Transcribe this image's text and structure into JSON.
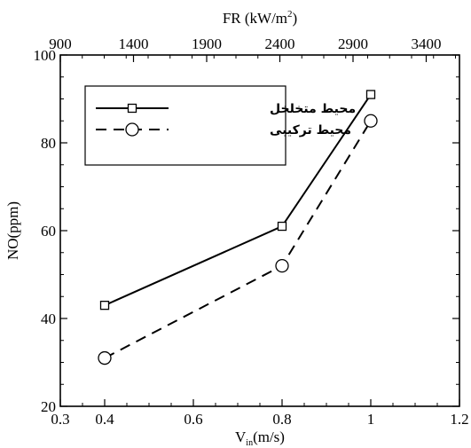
{
  "chart_data": {
    "type": "line",
    "xlabel_main": "V",
    "xlabel_sub": "in",
    "xlabel_unit": "(m/s)",
    "ylabel": "NO(ppm)",
    "top_xlabel_main": "FR (kW/m",
    "top_xlabel_sup": "2",
    "top_xlabel_end": ")",
    "xlim": [
      0.3,
      1.2
    ],
    "ylim": [
      20,
      100
    ],
    "x_ticks": [
      {
        "value": 0.3,
        "label": "0.3"
      },
      {
        "value": 0.4,
        "label": "0.4"
      },
      {
        "value": 0.6,
        "label": "0.6"
      },
      {
        "value": 0.8,
        "label": "0.8"
      },
      {
        "value": 1.0,
        "label": "1"
      },
      {
        "value": 1.2,
        "label": "1.2"
      }
    ],
    "y_ticks": [
      {
        "value": 20,
        "label": "20"
      },
      {
        "value": 40,
        "label": "40"
      },
      {
        "value": 60,
        "label": "60"
      },
      {
        "value": 80,
        "label": "80"
      },
      {
        "value": 100,
        "label": "100"
      }
    ],
    "top_ticks": [
      {
        "value": 0.3,
        "label": "900"
      },
      {
        "value": 0.465,
        "label": "1400"
      },
      {
        "value": 0.63,
        "label": "1900"
      },
      {
        "value": 0.795,
        "label": "2400"
      },
      {
        "value": 0.96,
        "label": "2900"
      },
      {
        "value": 1.125,
        "label": "3400"
      }
    ],
    "grid": false,
    "legend_position": "top-left",
    "series": [
      {
        "name": "محیط متخلخل",
        "style": "solid",
        "marker": "square",
        "color": "#000000",
        "x": [
          0.4,
          0.8,
          1.0
        ],
        "y": [
          43,
          61,
          91
        ]
      },
      {
        "name": "محیط ترکیبی",
        "style": "dashed",
        "marker": "circle",
        "color": "#000000",
        "x": [
          0.4,
          0.8,
          1.0
        ],
        "y": [
          31,
          52,
          85
        ]
      }
    ]
  }
}
